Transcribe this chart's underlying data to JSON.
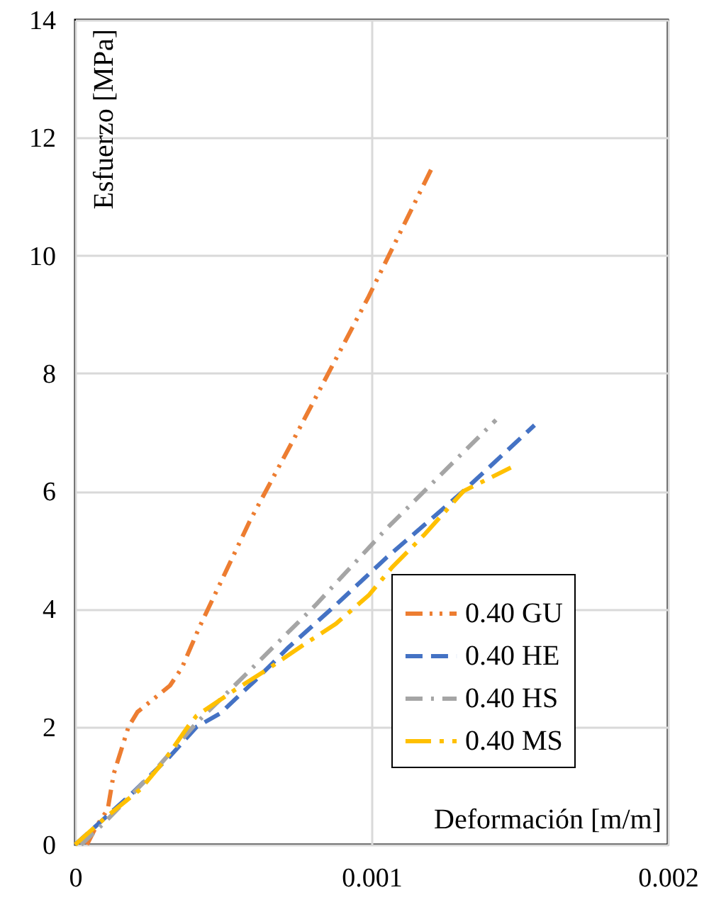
{
  "chart_data": {
    "type": "line",
    "xlabel": "Deformación [m/m]",
    "ylabel": "Esfuerzo [MPa]",
    "xlim": [
      0,
      0.002
    ],
    "xticks": [
      0,
      0.001,
      0.002
    ],
    "ylim": [
      0,
      14
    ],
    "yticks": [
      0,
      2,
      4,
      6,
      8,
      10,
      12,
      14
    ],
    "grid": true,
    "legend": "bottom right",
    "marker": "none",
    "series": [
      {
        "name": "0.40 GU",
        "color": "#ed7d31",
        "line_style": "dashed",
        "x": [
          4e-05,
          7e-05,
          0.00011,
          0.00013,
          0.00018,
          0.00021,
          0.00032,
          0.00036,
          0.00042,
          0.00059,
          0.00075,
          0.00099,
          0.00121
        ],
        "values": [
          0,
          0.3,
          0.6,
          1.2,
          2.0,
          2.25,
          2.7,
          3.0,
          3.7,
          5.5,
          7.0,
          9.3,
          11.55
        ]
      },
      {
        "name": "0.40 HE",
        "color": "#4472c4",
        "line_style": "dashed",
        "x": [
          0,
          0.00019,
          0.00032,
          0.00041,
          0.00049,
          0.00061,
          0.00072,
          0.00088,
          0.00105,
          0.00131,
          0.00155
        ],
        "values": [
          0,
          0.86,
          1.5,
          2.0,
          2.23,
          2.8,
          3.35,
          4.07,
          4.87,
          6.0,
          7.12
        ]
      },
      {
        "name": "0.40 HS",
        "color": "#a5a5a5",
        "line_style": "dashed",
        "x": [
          2e-05,
          0.0001,
          0.000255,
          0.00041,
          0.00057,
          0.00081,
          0.00105,
          0.00129,
          0.00142
        ],
        "values": [
          0,
          0.38,
          1.18,
          2.07,
          2.86,
          4.06,
          5.36,
          6.56,
          7.21
        ]
      },
      {
        "name": "0.40 MS",
        "color": "#ffc000",
        "line_style": "dashed",
        "x": [
          0,
          0.0001,
          0.00022,
          0.0003,
          0.00038,
          0.00041,
          0.00054,
          0.00065,
          0.00077,
          0.00088,
          0.00099,
          0.00107,
          0.00118,
          0.00131,
          0.00137,
          0.00147
        ],
        "values": [
          0,
          0.45,
          0.94,
          1.42,
          2.0,
          2.19,
          2.63,
          2.98,
          3.39,
          3.75,
          4.23,
          4.71,
          5.27,
          6.0,
          6.15,
          6.4
        ]
      }
    ]
  }
}
